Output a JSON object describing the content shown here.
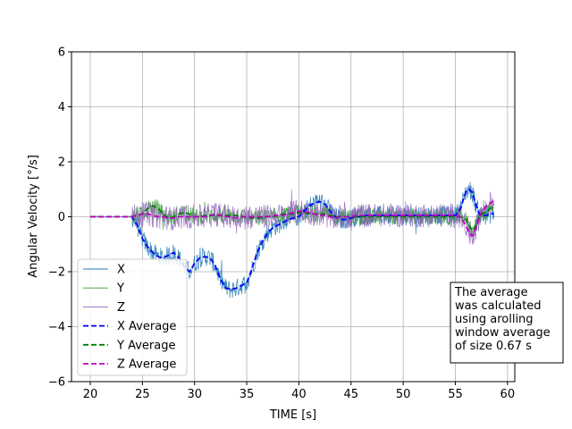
{
  "chart_data": {
    "type": "line",
    "title": "",
    "xlabel": "TIME [s]",
    "ylabel": "Angular Velocity [°/s]",
    "xlim": [
      18.2,
      60.7
    ],
    "ylim": [
      -6,
      6
    ],
    "xticks": [
      20,
      25,
      30,
      35,
      40,
      45,
      50,
      55,
      60
    ],
    "yticks": [
      -6,
      -4,
      -2,
      0,
      2,
      4,
      6
    ],
    "grid": true,
    "legend_position": "lower-left",
    "annotation": "The average\nwas calculated\nusing arolling\nwindow average\nof size 0.67 s",
    "x": [
      20,
      23,
      24,
      24.5,
      25,
      25.5,
      26,
      26.5,
      27,
      27.5,
      28,
      28.5,
      29,
      29.5,
      30,
      30.5,
      31,
      31.5,
      32,
      32.5,
      33,
      33.5,
      34,
      34.5,
      35,
      35.5,
      36,
      36.5,
      37,
      37.5,
      38,
      38.5,
      39,
      39.5,
      40,
      40.5,
      41,
      41.5,
      42,
      42.5,
      43,
      43.5,
      44,
      44.5,
      45,
      45.5,
      46,
      46.5,
      47,
      47.5,
      48,
      49,
      50,
      51,
      52,
      53,
      54,
      55,
      55.5,
      56,
      56.3,
      56.6,
      57,
      57.3,
      57.6,
      58,
      58.4,
      58.7
    ],
    "series": [
      {
        "name": "X",
        "color": "#1f77b4",
        "style": "raw",
        "amp": 0.35,
        "values": [
          0,
          0,
          0,
          -0.3,
          -0.8,
          -1.1,
          -1.3,
          -1.45,
          -1.5,
          -1.4,
          -1.3,
          -1.5,
          -1.8,
          -2.0,
          -1.7,
          -1.5,
          -1.45,
          -1.5,
          -1.8,
          -2.3,
          -2.6,
          -2.65,
          -2.6,
          -2.5,
          -2.4,
          -1.9,
          -1.3,
          -0.9,
          -0.6,
          -0.4,
          -0.3,
          -0.2,
          -0.1,
          -0.05,
          0.0,
          0.2,
          0.4,
          0.5,
          0.55,
          0.45,
          0.2,
          0.0,
          -0.1,
          -0.1,
          -0.05,
          0.0,
          0.0,
          0.05,
          0.05,
          0.05,
          0.05,
          0.05,
          0.05,
          0.05,
          0.05,
          0.05,
          0.05,
          0.05,
          0.3,
          0.9,
          1.0,
          0.9,
          0.4,
          0.1,
          0.05,
          0.05,
          0.1,
          0.1
        ]
      },
      {
        "name": "Y",
        "color": "#2ca02c",
        "style": "raw",
        "amp": 0.3,
        "values": [
          0,
          0,
          0,
          0.05,
          0.1,
          0.3,
          0.4,
          0.3,
          0.1,
          -0.05,
          0.0,
          0.1,
          0.15,
          0.1,
          0.0,
          0.0,
          0.05,
          0.05,
          0.05,
          0.05,
          0.05,
          0.05,
          0.05,
          0.0,
          0.0,
          -0.05,
          -0.05,
          -0.05,
          0.0,
          0.0,
          0.05,
          0.1,
          0.1,
          0.1,
          0.15,
          0.15,
          0.1,
          0.1,
          0.1,
          0.1,
          0.05,
          0.0,
          0.0,
          0.0,
          0.0,
          0.0,
          0.0,
          0.0,
          0.0,
          0.0,
          0.0,
          0.0,
          0.0,
          0.0,
          0.0,
          0.0,
          0.0,
          0.0,
          0.0,
          -0.1,
          -0.3,
          -0.5,
          -0.3,
          0.0,
          0.1,
          0.2,
          0.3,
          0.4
        ]
      },
      {
        "name": "Z",
        "color": "#9467bd",
        "style": "raw",
        "amp": 0.45,
        "values": [
          0,
          0,
          0,
          0.05,
          0.1,
          0.1,
          0.05,
          0.0,
          0.0,
          -0.05,
          -0.05,
          0.0,
          0.0,
          0.0,
          0.0,
          0.0,
          0.0,
          0.05,
          0.1,
          0.05,
          0.0,
          0.0,
          -0.05,
          0.0,
          0.0,
          0.0,
          0.0,
          0.0,
          0.0,
          0.05,
          0.05,
          0.05,
          0.1,
          0.15,
          0.2,
          0.2,
          0.15,
          0.1,
          0.05,
          0.05,
          0.0,
          -0.05,
          0.0,
          0.0,
          0.0,
          0.05,
          0.05,
          0.05,
          0.05,
          0.05,
          0.05,
          0.05,
          0.05,
          0.05,
          0.05,
          0.05,
          0.05,
          0.05,
          0.0,
          -0.3,
          -0.6,
          -0.7,
          -0.4,
          0.0,
          0.2,
          0.4,
          0.5,
          0.6
        ]
      },
      {
        "name": "X Average",
        "color": "#0000ff",
        "style": "avg",
        "values": [
          0,
          0,
          0,
          -0.3,
          -0.8,
          -1.1,
          -1.3,
          -1.45,
          -1.5,
          -1.4,
          -1.3,
          -1.5,
          -1.8,
          -2.0,
          -1.7,
          -1.5,
          -1.45,
          -1.5,
          -1.8,
          -2.3,
          -2.6,
          -2.65,
          -2.6,
          -2.5,
          -2.4,
          -1.9,
          -1.3,
          -0.9,
          -0.6,
          -0.4,
          -0.3,
          -0.2,
          -0.1,
          -0.05,
          0.0,
          0.2,
          0.4,
          0.5,
          0.55,
          0.45,
          0.2,
          0.0,
          -0.1,
          -0.1,
          -0.05,
          0.0,
          0.0,
          0.05,
          0.05,
          0.05,
          0.05,
          0.05,
          0.05,
          0.05,
          0.05,
          0.05,
          0.05,
          0.05,
          0.3,
          0.9,
          1.0,
          0.9,
          0.4,
          0.1,
          0.05,
          0.05,
          0.1,
          0.1
        ]
      },
      {
        "name": "Y Average",
        "color": "#008000",
        "style": "avg",
        "values": [
          0,
          0,
          0,
          0.05,
          0.1,
          0.3,
          0.4,
          0.3,
          0.1,
          -0.05,
          0.0,
          0.1,
          0.15,
          0.1,
          0.0,
          0.0,
          0.05,
          0.05,
          0.05,
          0.05,
          0.05,
          0.05,
          0.05,
          0.0,
          0.0,
          -0.05,
          -0.05,
          -0.05,
          0.0,
          0.0,
          0.05,
          0.1,
          0.1,
          0.1,
          0.15,
          0.15,
          0.1,
          0.1,
          0.1,
          0.1,
          0.05,
          0.0,
          0.0,
          0.0,
          0.0,
          0.0,
          0.0,
          0.0,
          0.0,
          0.0,
          0.0,
          0.0,
          0.0,
          0.0,
          0.0,
          0.0,
          0.0,
          0.0,
          0.0,
          -0.1,
          -0.3,
          -0.5,
          -0.3,
          0.0,
          0.1,
          0.2,
          0.3,
          0.4
        ]
      },
      {
        "name": "Z Average",
        "color": "#c000c0",
        "style": "avg",
        "values": [
          0,
          0,
          0,
          0.05,
          0.1,
          0.1,
          0.05,
          0.0,
          0.0,
          -0.05,
          -0.05,
          0.0,
          0.0,
          0.0,
          0.0,
          0.0,
          0.0,
          0.05,
          0.1,
          0.05,
          0.0,
          0.0,
          -0.05,
          0.0,
          0.0,
          0.0,
          0.0,
          0.0,
          0.0,
          0.05,
          0.05,
          0.05,
          0.1,
          0.15,
          0.2,
          0.2,
          0.15,
          0.1,
          0.05,
          0.05,
          0.0,
          -0.05,
          0.0,
          0.0,
          0.0,
          0.05,
          0.05,
          0.05,
          0.05,
          0.05,
          0.05,
          0.05,
          0.05,
          0.05,
          0.05,
          0.05,
          0.05,
          0.05,
          0.0,
          -0.3,
          -0.6,
          -0.7,
          -0.4,
          0.0,
          0.2,
          0.4,
          0.5,
          0.6
        ]
      }
    ]
  }
}
